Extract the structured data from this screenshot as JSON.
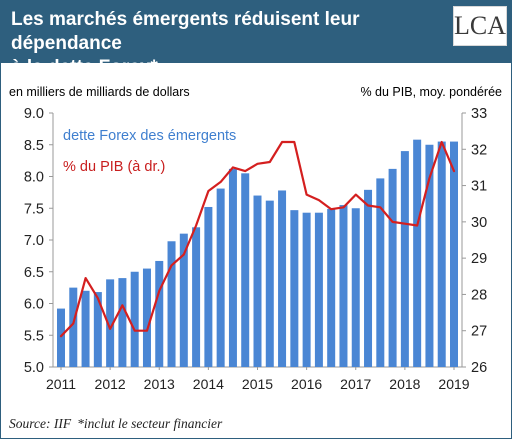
{
  "header": {
    "title_line1": "Les marchés émergents réduisent leur dépendance",
    "title_line2": "à la dette Forex*",
    "logo_text": "LCA"
  },
  "colors": {
    "header_bg": "#2e5f7e",
    "bar": "#4a86d4",
    "line": "#d41f1f",
    "legend_bar_text": "#3f7fcf",
    "legend_line_text": "#c81e1e"
  },
  "chart_data": {
    "type": "bar",
    "left_axis_label": "en milliers de milliards de dollars",
    "right_axis_label": "% du PIB, moy. pondérée",
    "x_tick_labels": [
      "2011",
      "2012",
      "2013",
      "2014",
      "2015",
      "2016",
      "2017",
      "2018",
      "2019"
    ],
    "y_left": {
      "min": 5.0,
      "max": 9.0,
      "ticks": [
        "5.0",
        "5.5",
        "6.0",
        "6.5",
        "7.0",
        "7.5",
        "8.0",
        "8.5",
        "9.0"
      ]
    },
    "y_right": {
      "min": 26,
      "max": 33,
      "ticks": [
        "26",
        "27",
        "28",
        "29",
        "30",
        "31",
        "32",
        "33"
      ]
    },
    "x_range": [
      2011.0,
      2019.0
    ],
    "series": [
      {
        "name": "dette Forex des émergents",
        "kind": "bar",
        "axis": "left",
        "x": [
          2011.0,
          2011.25,
          2011.5,
          2011.75,
          2012.0,
          2012.25,
          2012.5,
          2012.75,
          2013.0,
          2013.25,
          2013.5,
          2013.75,
          2014.0,
          2014.25,
          2014.5,
          2014.75,
          2015.0,
          2015.25,
          2015.5,
          2015.75,
          2016.0,
          2016.25,
          2016.5,
          2016.75,
          2017.0,
          2017.25,
          2017.5,
          2017.75,
          2018.0,
          2018.25,
          2018.5,
          2018.75,
          2019.0
        ],
        "values": [
          5.92,
          6.25,
          6.2,
          6.18,
          6.38,
          6.4,
          6.5,
          6.55,
          6.67,
          6.98,
          7.1,
          7.2,
          7.52,
          7.81,
          8.12,
          8.05,
          7.7,
          7.62,
          7.78,
          7.47,
          7.43,
          7.43,
          7.49,
          7.55,
          7.5,
          7.79,
          7.97,
          8.12,
          8.4,
          8.58,
          8.5,
          8.55,
          8.55
        ]
      },
      {
        "name": "% du PIB (à dr.)",
        "kind": "line",
        "axis": "right",
        "x": [
          2011.0,
          2011.25,
          2011.5,
          2011.75,
          2012.0,
          2012.25,
          2012.5,
          2012.75,
          2013.0,
          2013.25,
          2013.5,
          2013.75,
          2014.0,
          2014.25,
          2014.5,
          2014.75,
          2015.0,
          2015.25,
          2015.5,
          2015.75,
          2016.0,
          2016.25,
          2016.5,
          2016.75,
          2017.0,
          2017.25,
          2017.5,
          2017.75,
          2018.0,
          2018.25,
          2018.5,
          2018.75,
          2019.0
        ],
        "values": [
          26.85,
          27.2,
          28.45,
          27.9,
          27.05,
          27.7,
          27.0,
          27.0,
          28.1,
          28.8,
          29.1,
          29.9,
          30.85,
          31.1,
          31.5,
          31.4,
          31.6,
          31.65,
          32.2,
          32.2,
          30.75,
          30.6,
          30.35,
          30.4,
          30.75,
          30.45,
          30.4,
          30.0,
          29.95,
          29.9,
          31.2,
          32.2,
          31.4
        ]
      }
    ],
    "legend_placement": "top-left",
    "grid": false
  },
  "footer": {
    "source": "Source: IIF",
    "note": "*inclut le secteur financier"
  }
}
